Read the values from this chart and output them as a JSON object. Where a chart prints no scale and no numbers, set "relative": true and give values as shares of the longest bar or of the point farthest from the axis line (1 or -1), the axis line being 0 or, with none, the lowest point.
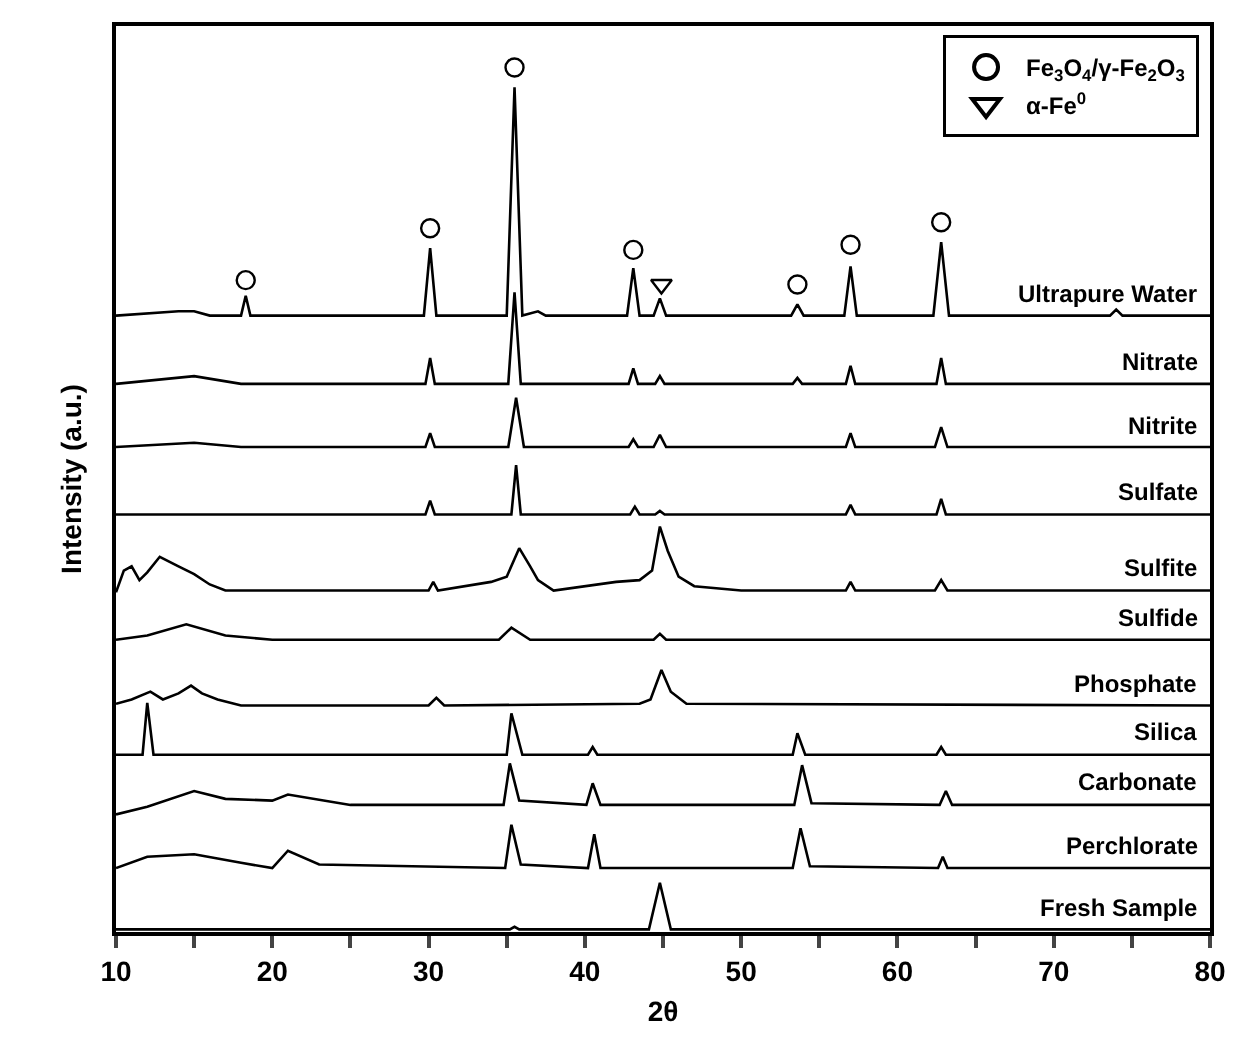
{
  "chart_data": {
    "type": "line",
    "relative": true,
    "xlabel": "2θ",
    "ylabel": "Intensity (a.u.)",
    "xlim": [
      10,
      80
    ],
    "xticks": [
      10,
      {
        "value": 15,
        "label": null
      },
      20,
      {
        "value": 25,
        "label": null
      },
      30,
      {
        "value": 35,
        "label": null
      },
      40,
      {
        "value": 45,
        "label": null
      },
      50,
      {
        "value": 55,
        "label": null
      },
      60,
      {
        "value": 65,
        "label": null
      },
      70,
      {
        "value": 75,
        "label": null
      },
      80
    ],
    "legend": "top right",
    "line_style": "solid",
    "series": [
      {
        "name": "Ultrapure Water",
        "color": "#000000",
        "x": [
          10,
          14,
          15,
          16,
          18,
          18.3,
          18.6,
          20,
          29.7,
          30.1,
          30.5,
          35,
          35.5,
          36,
          37,
          37.5,
          42.7,
          43.1,
          43.5,
          44.4,
          44.8,
          45.2,
          53.2,
          53.6,
          54,
          56.6,
          57.0,
          57.4,
          62.3,
          62.8,
          63.3,
          73.6,
          74,
          74.4,
          80
        ],
        "values": [
          0.713,
          0.718,
          0.718,
          0.713,
          0.713,
          0.736,
          0.713,
          0.713,
          0.713,
          0.791,
          0.713,
          0.713,
          0.977,
          0.713,
          0.718,
          0.713,
          0.713,
          0.768,
          0.713,
          0.713,
          0.733,
          0.713,
          0.713,
          0.726,
          0.713,
          0.713,
          0.77,
          0.713,
          0.713,
          0.798,
          0.713,
          0.713,
          0.72,
          0.713,
          0.713
        ]
      },
      {
        "name": "Nitrate",
        "color": "#000000",
        "x": [
          10,
          15,
          18,
          29.8,
          30.1,
          30.4,
          35.1,
          35.5,
          35.9,
          42.8,
          43.1,
          43.4,
          44.5,
          44.8,
          45.1,
          53.3,
          53.6,
          53.9,
          56.7,
          57.0,
          57.3,
          62.5,
          62.8,
          63.1,
          80
        ],
        "values": [
          0.634,
          0.643,
          0.634,
          0.634,
          0.664,
          0.634,
          0.634,
          0.74,
          0.634,
          0.634,
          0.652,
          0.634,
          0.634,
          0.643,
          0.634,
          0.634,
          0.641,
          0.634,
          0.634,
          0.655,
          0.634,
          0.634,
          0.664,
          0.634,
          0.634
        ]
      },
      {
        "name": "Nitrite",
        "color": "#000000",
        "x": [
          10,
          15,
          18,
          29.8,
          30.1,
          30.4,
          35.1,
          35.6,
          36.1,
          42.8,
          43.1,
          43.4,
          44.4,
          44.8,
          45.2,
          56.7,
          57.0,
          57.3,
          62.4,
          62.8,
          63.2,
          80
        ],
        "values": [
          0.561,
          0.566,
          0.561,
          0.561,
          0.577,
          0.561,
          0.561,
          0.618,
          0.561,
          0.561,
          0.57,
          0.561,
          0.561,
          0.575,
          0.561,
          0.561,
          0.577,
          0.561,
          0.561,
          0.584,
          0.561,
          0.561
        ]
      },
      {
        "name": "Sulfate",
        "color": "#000000",
        "x": [
          10,
          29.8,
          30.1,
          30.4,
          35.3,
          35.6,
          35.9,
          42.9,
          43.2,
          43.5,
          44.5,
          44.8,
          45.1,
          56.7,
          57.0,
          57.3,
          62.5,
          62.8,
          63.1,
          80
        ],
        "values": [
          0.483,
          0.483,
          0.499,
          0.483,
          0.483,
          0.54,
          0.483,
          0.483,
          0.492,
          0.483,
          0.483,
          0.487,
          0.483,
          0.483,
          0.494,
          0.483,
          0.483,
          0.501,
          0.483,
          0.483
        ]
      },
      {
        "name": "Sulfite",
        "color": "#000000",
        "x": [
          10,
          10.5,
          11,
          11.5,
          12,
          12.8,
          14,
          15,
          16,
          17,
          20,
          25,
          30,
          30.3,
          30.6,
          34,
          35,
          35.8,
          36.5,
          37,
          38,
          42,
          43.5,
          44.3,
          44.8,
          45.3,
          46,
          47,
          50,
          56.7,
          57,
          57.3,
          62.4,
          62.8,
          63.2,
          80
        ],
        "values": [
          0.393,
          0.418,
          0.423,
          0.407,
          0.416,
          0.434,
          0.423,
          0.414,
          0.402,
          0.395,
          0.395,
          0.395,
          0.395,
          0.405,
          0.395,
          0.405,
          0.411,
          0.444,
          0.423,
          0.407,
          0.395,
          0.405,
          0.407,
          0.418,
          0.469,
          0.441,
          0.411,
          0.4,
          0.395,
          0.395,
          0.405,
          0.395,
          0.395,
          0.407,
          0.395,
          0.395
        ]
      },
      {
        "name": "Sulfide",
        "color": "#000000",
        "x": [
          10,
          12,
          14.5,
          17,
          20,
          34.5,
          35.3,
          36.5,
          44.4,
          44.8,
          45.2,
          80
        ],
        "values": [
          0.338,
          0.343,
          0.356,
          0.343,
          0.338,
          0.338,
          0.352,
          0.338,
          0.338,
          0.345,
          0.338,
          0.338
        ]
      },
      {
        "name": "Phosphate",
        "color": "#000000",
        "x": [
          10,
          11,
          12.2,
          13,
          14,
          14.8,
          15.5,
          16.5,
          18,
          30,
          30.5,
          31,
          43.5,
          44.2,
          44.9,
          45.5,
          46.5,
          80
        ],
        "values": [
          0.264,
          0.269,
          0.278,
          0.269,
          0.276,
          0.285,
          0.276,
          0.269,
          0.262,
          0.262,
          0.271,
          0.262,
          0.264,
          0.269,
          0.303,
          0.278,
          0.264,
          0.262
        ]
      },
      {
        "name": "Silica",
        "color": "#000000",
        "x": [
          10,
          11.7,
          12.0,
          12.4,
          35.0,
          35.3,
          36.0,
          40.2,
          40.5,
          40.8,
          53.3,
          53.6,
          54.1,
          62.5,
          62.8,
          63.1,
          80
        ],
        "values": [
          0.205,
          0.205,
          0.265,
          0.205,
          0.205,
          0.253,
          0.205,
          0.205,
          0.214,
          0.205,
          0.205,
          0.23,
          0.205,
          0.205,
          0.214,
          0.205,
          0.205
        ]
      },
      {
        "name": "Carbonate",
        "color": "#000000",
        "x": [
          10,
          12,
          15,
          17,
          20,
          21,
          25,
          34.8,
          35.2,
          35.8,
          40.1,
          40.5,
          41,
          53.4,
          53.9,
          54.5,
          62.7,
          63.1,
          63.5,
          80
        ],
        "values": [
          0.136,
          0.145,
          0.163,
          0.154,
          0.152,
          0.159,
          0.147,
          0.147,
          0.195,
          0.152,
          0.147,
          0.172,
          0.147,
          0.147,
          0.193,
          0.149,
          0.147,
          0.163,
          0.147,
          0.147
        ]
      },
      {
        "name": "Perchlorate",
        "color": "#000000",
        "x": [
          10,
          12,
          15,
          18,
          20,
          21,
          23,
          34.9,
          35.3,
          35.9,
          40.2,
          40.6,
          41,
          53.3,
          53.8,
          54.4,
          62.6,
          62.9,
          63.2,
          80
        ],
        "values": [
          0.074,
          0.087,
          0.09,
          0.08,
          0.074,
          0.094,
          0.078,
          0.074,
          0.124,
          0.078,
          0.074,
          0.113,
          0.074,
          0.074,
          0.12,
          0.076,
          0.074,
          0.087,
          0.074,
          0.074
        ]
      },
      {
        "name": "Fresh Sample",
        "color": "#000000",
        "x": [
          10,
          35.2,
          35.5,
          35.8,
          44.1,
          44.8,
          45.5,
          80
        ],
        "values": [
          0.003,
          0.003,
          0.006,
          0.003,
          0.003,
          0.057,
          0.003,
          0.003
        ]
      },
      {
        "name": "Fe$_{3}$O$_{4}$/γ-Fe$_{2}$O$_{3}$",
        "type": "scatter",
        "marker": "circle",
        "color": "#000000",
        "x": [
          18.3,
          30.1,
          35.5,
          43.1,
          53.6,
          57.0,
          62.8
        ],
        "values": [
          0.754,
          0.814,
          1.0,
          0.789,
          0.749,
          0.795,
          0.821
        ]
      },
      {
        "name": "α-Fe$^{0}$",
        "type": "scatter",
        "marker": "triangle",
        "color": "#000000",
        "x": [
          44.9
        ],
        "values": [
          0.749
        ]
      }
    ]
  }
}
